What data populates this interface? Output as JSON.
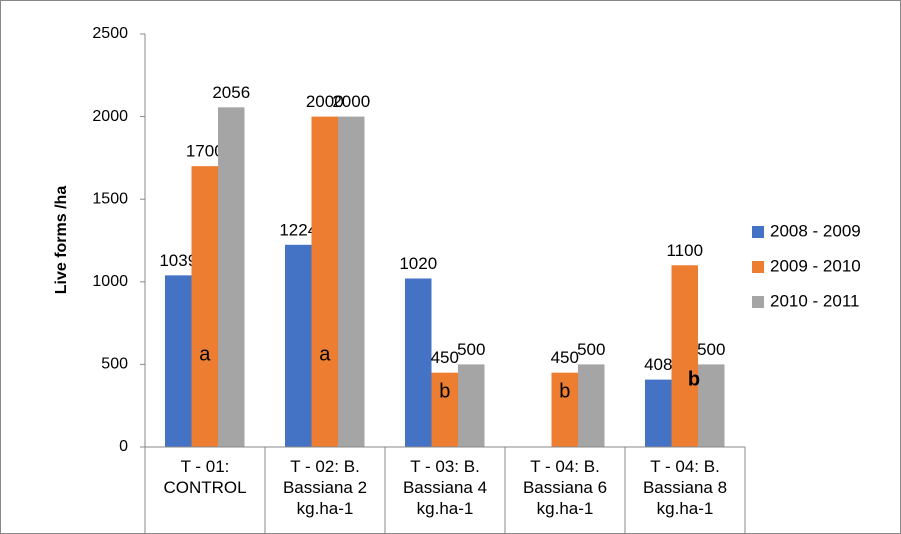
{
  "chart_data": {
    "type": "bar",
    "y_label": "Live forms /ha",
    "categories": [
      "T - 01:\nCONTROL",
      "T - 02: B.\nBassiana 2\nkg.ha-1",
      "T - 03: B.\nBassiana 4\nkg.ha-1",
      "T - 04: B.\nBassiana 6\nkg.ha-1",
      "T - 04: B.\nBassiana 8\nkg.ha-1"
    ],
    "series": [
      {
        "name": "2008 - 2009",
        "color": "#4472c4",
        "values": [
          1039,
          1224,
          1020,
          null,
          408
        ]
      },
      {
        "name": "2009 - 2010",
        "color": "#ed7d31",
        "values": [
          1700,
          2000,
          450,
          450,
          1100
        ]
      },
      {
        "name": "2010 - 2011",
        "color": "#a5a5a5",
        "values": [
          2056,
          2000,
          500,
          500,
          500
        ]
      }
    ],
    "annotations": [
      "a",
      "a",
      "b",
      "b",
      "b"
    ],
    "ylim": [
      0,
      2500
    ],
    "yticks": [
      0,
      500,
      1000,
      1500,
      2000,
      2500
    ],
    "grid": false,
    "legend": "right"
  }
}
